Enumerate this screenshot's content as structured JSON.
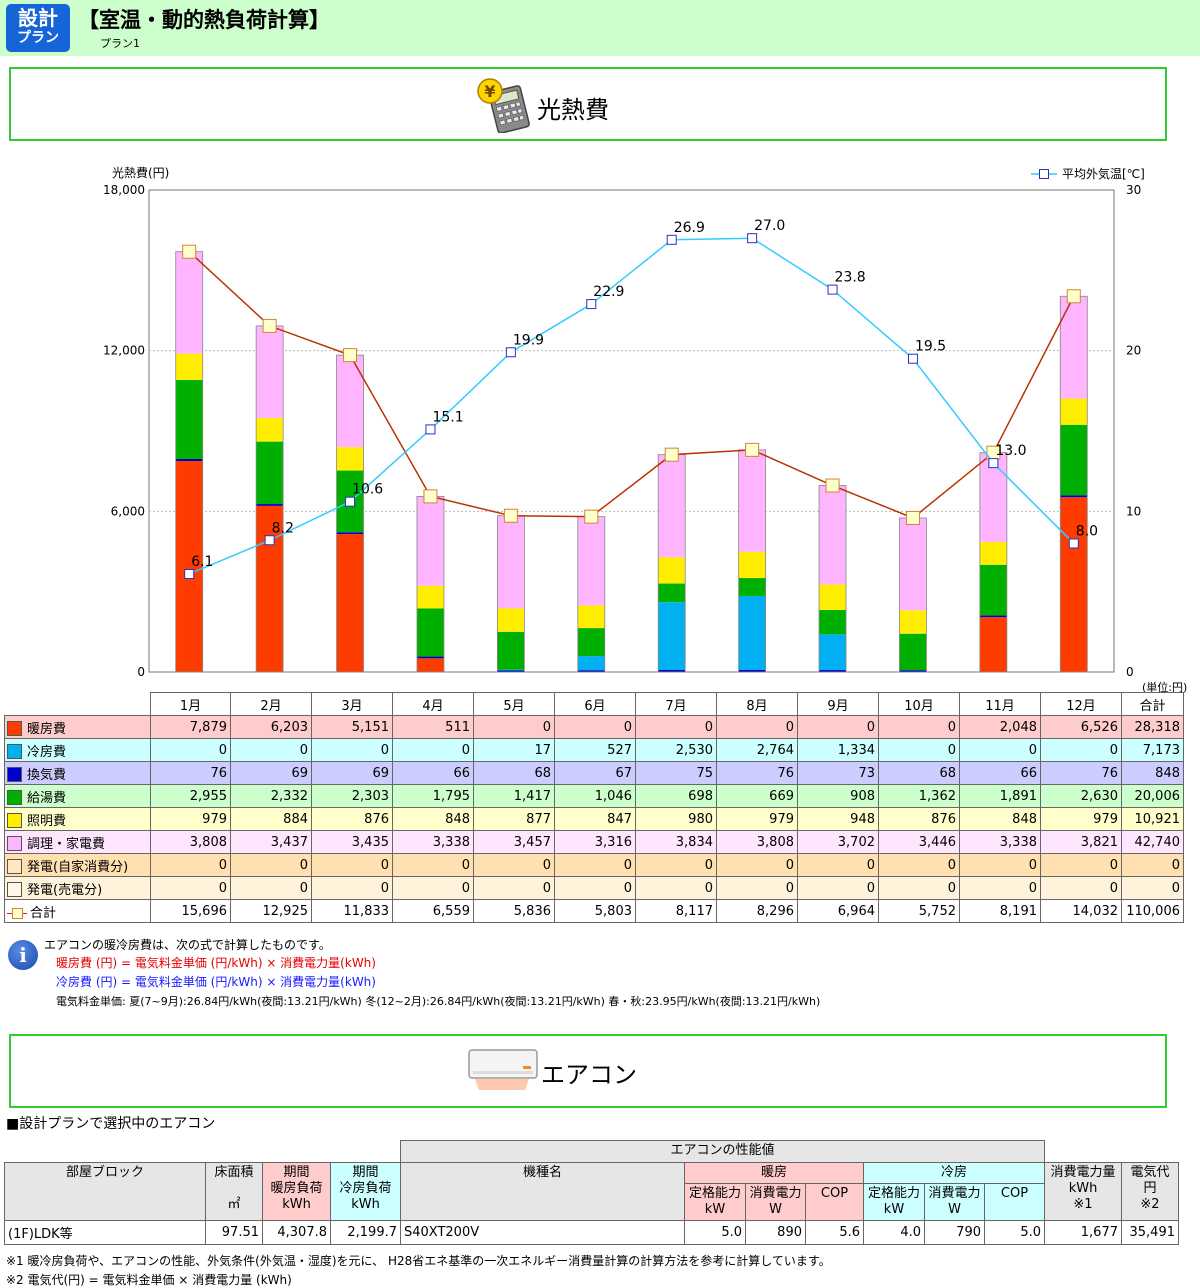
{
  "header": {
    "badge_line1": "設計",
    "badge_line2": "プラン",
    "title": "【室温・動的熱負荷計算】",
    "plan": "プラン1"
  },
  "sections": {
    "cost_title": "光熱費",
    "ac_title": "エアコン",
    "cost_icon": "calculator-yen-icon",
    "ac_icon": "air-conditioner-icon"
  },
  "chart_data": {
    "type": "bar",
    "stacked": true,
    "categories": [
      "1月",
      "2月",
      "3月",
      "4月",
      "5月",
      "6月",
      "7月",
      "8月",
      "9月",
      "10月",
      "11月",
      "12月"
    ],
    "ylabel": "光熱費(円)",
    "ylim": [
      0,
      18000
    ],
    "yticks": [
      "0",
      "6,000",
      "12,000",
      "18,000"
    ],
    "y2lim": [
      0,
      30
    ],
    "y2ticks": [
      "0",
      "10",
      "20",
      "30"
    ],
    "grid": true,
    "legend_position": "top-right",
    "series": [
      {
        "name": "暖房費",
        "color": "#ff3c00",
        "values": [
          7879,
          6203,
          5151,
          511,
          0,
          0,
          0,
          0,
          0,
          0,
          2048,
          6526
        ]
      },
      {
        "name": "換気費",
        "color": "#0000cc",
        "values": [
          76,
          69,
          69,
          66,
          68,
          67,
          75,
          76,
          73,
          68,
          66,
          76
        ]
      },
      {
        "name": "冷房費",
        "color": "#00b0f0",
        "values": [
          0,
          0,
          0,
          0,
          17,
          527,
          2530,
          2764,
          1334,
          0,
          0,
          0
        ]
      },
      {
        "name": "給湯費",
        "color": "#00b000",
        "values": [
          2955,
          2332,
          2303,
          1795,
          1417,
          1046,
          698,
          669,
          908,
          1362,
          1891,
          2630
        ]
      },
      {
        "name": "照明費",
        "color": "#ffee00",
        "values": [
          979,
          884,
          876,
          848,
          877,
          847,
          980,
          979,
          948,
          876,
          848,
          979
        ]
      },
      {
        "name": "調理・家電費",
        "color": "#ffb4ff",
        "values": [
          3808,
          3437,
          3435,
          3338,
          3457,
          3316,
          3834,
          3808,
          3702,
          3446,
          3338,
          3821
        ]
      }
    ],
    "total_line": {
      "name": "合計",
      "color": "#bb3300",
      "values": [
        15696,
        12925,
        11833,
        6559,
        5836,
        5803,
        8117,
        8296,
        6964,
        5752,
        8191,
        14032
      ]
    },
    "temperature_line": {
      "name": "平均外気温[℃]",
      "color": "#33ccff",
      "values": [
        6.1,
        8.2,
        10.6,
        15.1,
        19.9,
        22.9,
        26.9,
        27.0,
        23.8,
        19.5,
        13.0,
        8.0
      ],
      "labels": [
        "6.1",
        "8.2",
        "10.6",
        "15.1",
        "19.9",
        "22.9",
        "26.9",
        "27.0",
        "23.8",
        "19.5",
        "13.0",
        "8.0"
      ]
    }
  },
  "table": {
    "unit": "(単位:円)",
    "months": [
      "1月",
      "2月",
      "3月",
      "4月",
      "5月",
      "6月",
      "7月",
      "8月",
      "9月",
      "10月",
      "11月",
      "12月"
    ],
    "total_header": "合計",
    "rows": [
      {
        "label": "暖房費",
        "bg": "#ffcccc",
        "swatch": "#ff3c00",
        "values": [
          "7,879",
          "6,203",
          "5,151",
          "511",
          "0",
          "0",
          "0",
          "0",
          "0",
          "0",
          "2,048",
          "6,526"
        ],
        "total": "28,318"
      },
      {
        "label": "冷房費",
        "bg": "#ccffff",
        "swatch": "#00b0f0",
        "values": [
          "0",
          "0",
          "0",
          "0",
          "17",
          "527",
          "2,530",
          "2,764",
          "1,334",
          "0",
          "0",
          "0"
        ],
        "total": "7,173"
      },
      {
        "label": "換気費",
        "bg": "#ccccff",
        "swatch": "#0000cc",
        "values": [
          "76",
          "69",
          "69",
          "66",
          "68",
          "67",
          "75",
          "76",
          "73",
          "68",
          "66",
          "76"
        ],
        "total": "848"
      },
      {
        "label": "給湯費",
        "bg": "#ccffcc",
        "swatch": "#00b000",
        "values": [
          "2,955",
          "2,332",
          "2,303",
          "1,795",
          "1,417",
          "1,046",
          "698",
          "669",
          "908",
          "1,362",
          "1,891",
          "2,630"
        ],
        "total": "20,006"
      },
      {
        "label": "照明費",
        "bg": "#ffffcc",
        "swatch": "#ffee00",
        "values": [
          "979",
          "884",
          "876",
          "848",
          "877",
          "847",
          "980",
          "979",
          "948",
          "876",
          "848",
          "979"
        ],
        "total": "10,921"
      },
      {
        "label": "調理・家電費",
        "bg": "#ffe6ff",
        "swatch": "#ffb4ff",
        "values": [
          "3,808",
          "3,437",
          "3,435",
          "3,338",
          "3,457",
          "3,316",
          "3,834",
          "3,808",
          "3,702",
          "3,446",
          "3,338",
          "3,821"
        ],
        "total": "42,740"
      },
      {
        "label": "発電(自家消費分)",
        "bg": "#ffe0b0",
        "swatch": "#ffe8c0",
        "values": [
          "0",
          "0",
          "0",
          "0",
          "0",
          "0",
          "0",
          "0",
          "0",
          "0",
          "0",
          "0"
        ],
        "total": "0"
      },
      {
        "label": "発電(売電分)",
        "bg": "#fff3dc",
        "swatch": "#fff8e8",
        "values": [
          "0",
          "0",
          "0",
          "0",
          "0",
          "0",
          "0",
          "0",
          "0",
          "0",
          "0",
          "0"
        ],
        "total": "0"
      },
      {
        "label": "合計",
        "bg": "#ffffff",
        "swatch": "line",
        "values": [
          "15,696",
          "12,925",
          "11,833",
          "6,559",
          "5,836",
          "5,803",
          "8,117",
          "8,296",
          "6,964",
          "5,752",
          "8,191",
          "14,032"
        ],
        "total": "110,006"
      }
    ]
  },
  "notes": {
    "intro": "エアコンの暖冷房費は、次の式で計算したものです。",
    "heating": "暖房費 (円) = 電気料金単価 (円/kWh) × 消費電力量(kWh)",
    "cooling": "冷房費 (円) = 電気料金単価 (円/kWh) × 消費電力量(kWh)",
    "rates": "電気料金単価:  夏(7~9月):26.84円/kWh(夜間:13.21円/kWh)    冬(12~2月):26.84円/kWh(夜間:13.21円/kWh)    春・秋:23.95円/kWh(夜間:13.21円/kWh)"
  },
  "ac": {
    "heading": "■設計プランで選択中のエアコン",
    "perf_header": "エアコンの性能値",
    "h_room": "部屋ブロック",
    "h_area": "床面積",
    "h_area_unit": "㎡",
    "h_heat_load": "期間\n暖房負荷\nkWh",
    "h_cool_load": "期間\n冷房負荷\nkWh",
    "h_model": "機種名",
    "h_heating": "暖房",
    "h_cooling": "冷房",
    "h_rated": "定格能力\nkW",
    "h_power": "消費電力\nW",
    "h_cop": "COP",
    "h_energy": "消費電力量\nkWh\n※1",
    "h_cost": "電気代\n円\n※2",
    "row": {
      "room": "(1F)LDK等",
      "area": "97.51",
      "heat_load": "4,307.8",
      "cool_load": "2,199.7",
      "model": "S40XT200V",
      "heat_rated": "5.0",
      "heat_power": "890",
      "heat_cop": "5.6",
      "cool_rated": "4.0",
      "cool_power": "790",
      "cool_cop": "5.0",
      "energy": "1,677",
      "cost": "35,491"
    },
    "note1": "※1 暖冷房負荷や、エアコンの性能、外気条件(外気温・湿度)を元に、 H28省エネ基準の一次エネルギー消費量計算の計算方法を参考に計算しています。",
    "note2": "※2 電気代(円) = 電気料金単価 × 消費電力量 (kWh)"
  }
}
